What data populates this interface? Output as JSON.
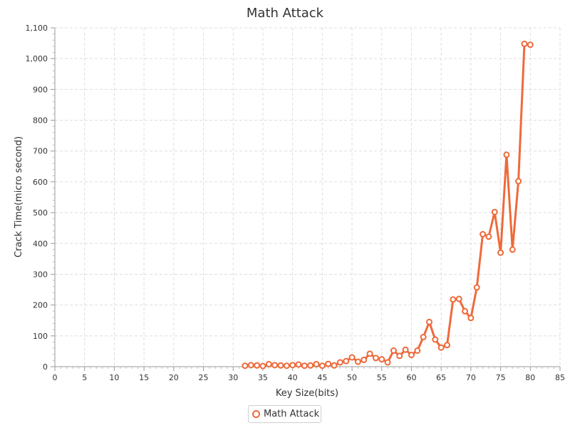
{
  "chart_data": {
    "type": "line",
    "title": "Math Attack",
    "xlabel": "Key Size(bits)",
    "ylabel": "Crack Time(micro second)",
    "xlim": [
      0,
      85
    ],
    "ylim": [
      0,
      1100
    ],
    "x_ticks": [
      0,
      5,
      10,
      15,
      20,
      25,
      30,
      35,
      40,
      45,
      50,
      55,
      60,
      65,
      70,
      75,
      80,
      85
    ],
    "y_ticks": [
      0,
      100,
      200,
      300,
      400,
      500,
      600,
      700,
      800,
      900,
      1000,
      1100
    ],
    "y_tick_labels": [
      "0",
      "100",
      "200",
      "300",
      "400",
      "500",
      "600",
      "700",
      "800",
      "900",
      "1,000",
      "1,100"
    ],
    "grid": true,
    "legend_position": "bottom-center",
    "series": [
      {
        "name": "Math Attack",
        "color": "#ee6a3a",
        "x": [
          32,
          33,
          34,
          35,
          36,
          37,
          38,
          39,
          40,
          41,
          42,
          43,
          44,
          45,
          46,
          47,
          48,
          49,
          50,
          51,
          52,
          53,
          54,
          55,
          56,
          57,
          58,
          59,
          60,
          61,
          62,
          63,
          64,
          65,
          66,
          67,
          68,
          69,
          70,
          71,
          72,
          73,
          74,
          75,
          76,
          77,
          78,
          79,
          80
        ],
        "y": [
          3,
          5,
          4,
          2,
          8,
          5,
          4,
          3,
          5,
          7,
          3,
          4,
          8,
          3,
          9,
          4,
          14,
          18,
          30,
          16,
          22,
          42,
          28,
          24,
          14,
          52,
          35,
          55,
          38,
          52,
          96,
          145,
          88,
          62,
          70,
          218,
          220,
          180,
          158,
          257,
          430,
          422,
          502,
          370,
          688,
          380,
          602,
          1048,
          1045
        ]
      }
    ]
  }
}
